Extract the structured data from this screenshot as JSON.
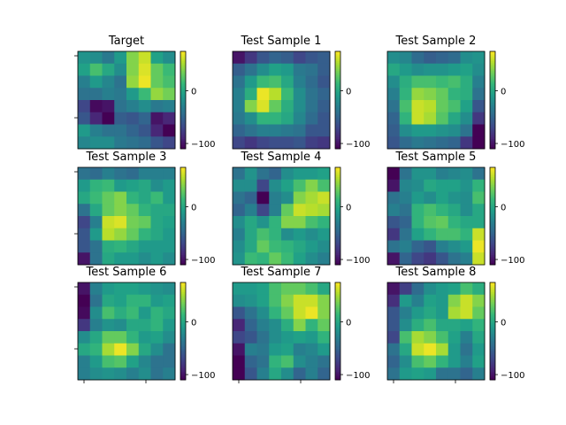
{
  "chart_data": {
    "type": "heatmap",
    "colormap": "viridis",
    "color_range": [
      -110,
      75
    ],
    "colorbar_ticks": [
      0,
      -100
    ],
    "panels": [
      {
        "title": "Target",
        "values": [
          [
            -15,
            -20,
            -35,
            -10,
            40,
            60,
            -5,
            -20
          ],
          [
            -5,
            20,
            0,
            -20,
            40,
            65,
            30,
            15
          ],
          [
            -30,
            -10,
            -25,
            -40,
            45,
            70,
            30,
            20
          ],
          [
            -40,
            -40,
            -30,
            -35,
            -10,
            15,
            45,
            35
          ],
          [
            -70,
            -105,
            -100,
            -40,
            -30,
            -20,
            -35,
            -30
          ],
          [
            -60,
            -90,
            -110,
            -55,
            -60,
            -50,
            -100,
            -90
          ],
          [
            -10,
            -30,
            -40,
            -40,
            -50,
            -60,
            -90,
            -120
          ],
          [
            -25,
            -20,
            -20,
            -35,
            -40,
            -45,
            -60,
            -70
          ]
        ]
      },
      {
        "title": "Test Sample 1",
        "values": [
          [
            -100,
            -80,
            -60,
            -50,
            -55,
            -70,
            -60,
            -55
          ],
          [
            -55,
            -40,
            -20,
            -5,
            -10,
            -35,
            -40,
            -55
          ],
          [
            -40,
            -10,
            15,
            20,
            0,
            -30,
            -45,
            -60
          ],
          [
            -30,
            5,
            70,
            55,
            15,
            -20,
            -40,
            -50
          ],
          [
            -30,
            40,
            65,
            30,
            5,
            -20,
            -40,
            -55
          ],
          [
            -35,
            -20,
            10,
            10,
            0,
            -25,
            -45,
            -60
          ],
          [
            -50,
            -40,
            -30,
            -30,
            -35,
            -40,
            -60,
            -60
          ],
          [
            -70,
            -80,
            -70,
            -65,
            -65,
            -60,
            -75,
            -80
          ]
        ]
      },
      {
        "title": "Test Sample 2",
        "values": [
          [
            -20,
            -25,
            -45,
            -55,
            -50,
            -45,
            -20,
            -15
          ],
          [
            0,
            -10,
            -20,
            -15,
            -15,
            -10,
            -5,
            -20
          ],
          [
            -20,
            5,
            20,
            20,
            15,
            20,
            5,
            -30
          ],
          [
            -30,
            10,
            45,
            40,
            30,
            10,
            5,
            -40
          ],
          [
            -40,
            20,
            60,
            55,
            30,
            20,
            -5,
            -60
          ],
          [
            -50,
            10,
            60,
            50,
            25,
            0,
            -20,
            -80
          ],
          [
            -55,
            -20,
            -10,
            -10,
            -15,
            -20,
            -40,
            -110
          ],
          [
            -60,
            -45,
            -35,
            -40,
            -45,
            -50,
            -80,
            -120
          ]
        ]
      },
      {
        "title": "Test Sample 3",
        "values": [
          [
            -40,
            -45,
            -30,
            -40,
            -45,
            -30,
            -30,
            -30
          ],
          [
            -10,
            10,
            15,
            -10,
            -5,
            0,
            -20,
            -10
          ],
          [
            0,
            15,
            30,
            40,
            10,
            0,
            15,
            -10
          ],
          [
            -40,
            0,
            30,
            40,
            30,
            10,
            0,
            0
          ],
          [
            -70,
            -30,
            60,
            65,
            35,
            30,
            0,
            -5
          ],
          [
            -60,
            -10,
            55,
            45,
            30,
            10,
            0,
            -10
          ],
          [
            -60,
            -40,
            5,
            10,
            0,
            -10,
            -10,
            -10
          ],
          [
            -100,
            -40,
            0,
            -10,
            -10,
            -20,
            -10,
            -20
          ]
        ]
      },
      {
        "title": "Test Sample 4",
        "values": [
          [
            -40,
            -15,
            -40,
            -50,
            -20,
            -10,
            -10,
            -5
          ],
          [
            -20,
            -20,
            -70,
            -20,
            -5,
            20,
            40,
            20
          ],
          [
            -40,
            -50,
            -110,
            -30,
            -20,
            40,
            50,
            60
          ],
          [
            -50,
            -30,
            -70,
            -30,
            30,
            60,
            55,
            50
          ],
          [
            -20,
            0,
            -15,
            10,
            40,
            40,
            20,
            10
          ],
          [
            -30,
            0,
            20,
            10,
            -20,
            -10,
            -20,
            -10
          ],
          [
            -20,
            0,
            30,
            15,
            10,
            0,
            -10,
            -20
          ],
          [
            -15,
            15,
            10,
            30,
            15,
            -5,
            -20,
            -30
          ]
        ]
      },
      {
        "title": "Test Sample 5",
        "values": [
          [
            -110,
            -40,
            -15,
            -15,
            -30,
            -25,
            -20,
            -40
          ],
          [
            -100,
            -25,
            -20,
            0,
            -5,
            -5,
            -15,
            10
          ],
          [
            -40,
            -30,
            -10,
            -20,
            -5,
            -15,
            -20,
            20
          ],
          [
            -30,
            -40,
            10,
            20,
            10,
            0,
            -20,
            0
          ],
          [
            -60,
            -50,
            10,
            25,
            30,
            10,
            0,
            0
          ],
          [
            -80,
            -40,
            -5,
            10,
            20,
            20,
            10,
            60
          ],
          [
            -40,
            -30,
            -50,
            -60,
            -30,
            -20,
            -10,
            70
          ],
          [
            -100,
            -50,
            -70,
            -80,
            -60,
            -40,
            -30,
            60
          ]
        ]
      },
      {
        "title": "Test Sample 6",
        "values": [
          [
            -100,
            -30,
            -10,
            -5,
            -5,
            -10,
            -15,
            -20
          ],
          [
            -110,
            -40,
            0,
            -5,
            10,
            10,
            -10,
            -5
          ],
          [
            -105,
            -20,
            20,
            5,
            15,
            -10,
            10,
            0
          ],
          [
            -80,
            -30,
            -15,
            -20,
            0,
            0,
            10,
            -10
          ],
          [
            -20,
            0,
            30,
            30,
            10,
            -10,
            -5,
            -20
          ],
          [
            0,
            10,
            50,
            70,
            40,
            0,
            -20,
            -40
          ],
          [
            -30,
            -10,
            20,
            25,
            -5,
            -25,
            -40,
            -40
          ],
          [
            -30,
            -20,
            -15,
            -20,
            -30,
            -20,
            -40,
            -30
          ]
        ]
      },
      {
        "title": "Test Sample 7",
        "values": [
          [
            -10,
            -10,
            -5,
            20,
            30,
            30,
            20,
            0
          ],
          [
            -20,
            -15,
            -5,
            20,
            40,
            60,
            60,
            40
          ],
          [
            -60,
            -40,
            -20,
            10,
            30,
            60,
            70,
            40
          ],
          [
            -90,
            -50,
            -30,
            -20,
            5,
            40,
            10,
            30
          ],
          [
            -70,
            -60,
            -40,
            -20,
            -10,
            -5,
            -10,
            10
          ],
          [
            -100,
            -30,
            -35,
            -10,
            -5,
            -30,
            -25,
            -10
          ],
          [
            -110,
            -50,
            -40,
            10,
            20,
            -20,
            -30,
            -40
          ],
          [
            -110,
            -60,
            -30,
            0,
            -20,
            -50,
            -30,
            -50
          ]
        ]
      },
      {
        "title": "Test Sample 8",
        "values": [
          [
            -100,
            -75,
            -45,
            -20,
            -10,
            -5,
            20,
            5
          ],
          [
            -85,
            -10,
            -30,
            -5,
            -10,
            40,
            60,
            40
          ],
          [
            -60,
            -30,
            -10,
            0,
            -10,
            50,
            60,
            30
          ],
          [
            -60,
            -20,
            5,
            20,
            0,
            0,
            -5,
            10
          ],
          [
            -70,
            20,
            50,
            40,
            20,
            -5,
            -30,
            0
          ],
          [
            -40,
            0,
            60,
            70,
            50,
            -10,
            -40,
            -10
          ],
          [
            -50,
            -20,
            20,
            30,
            10,
            -10,
            -30,
            -5
          ],
          [
            -40,
            -10,
            -5,
            -10,
            -40,
            -40,
            -50,
            -30
          ]
        ]
      }
    ]
  }
}
